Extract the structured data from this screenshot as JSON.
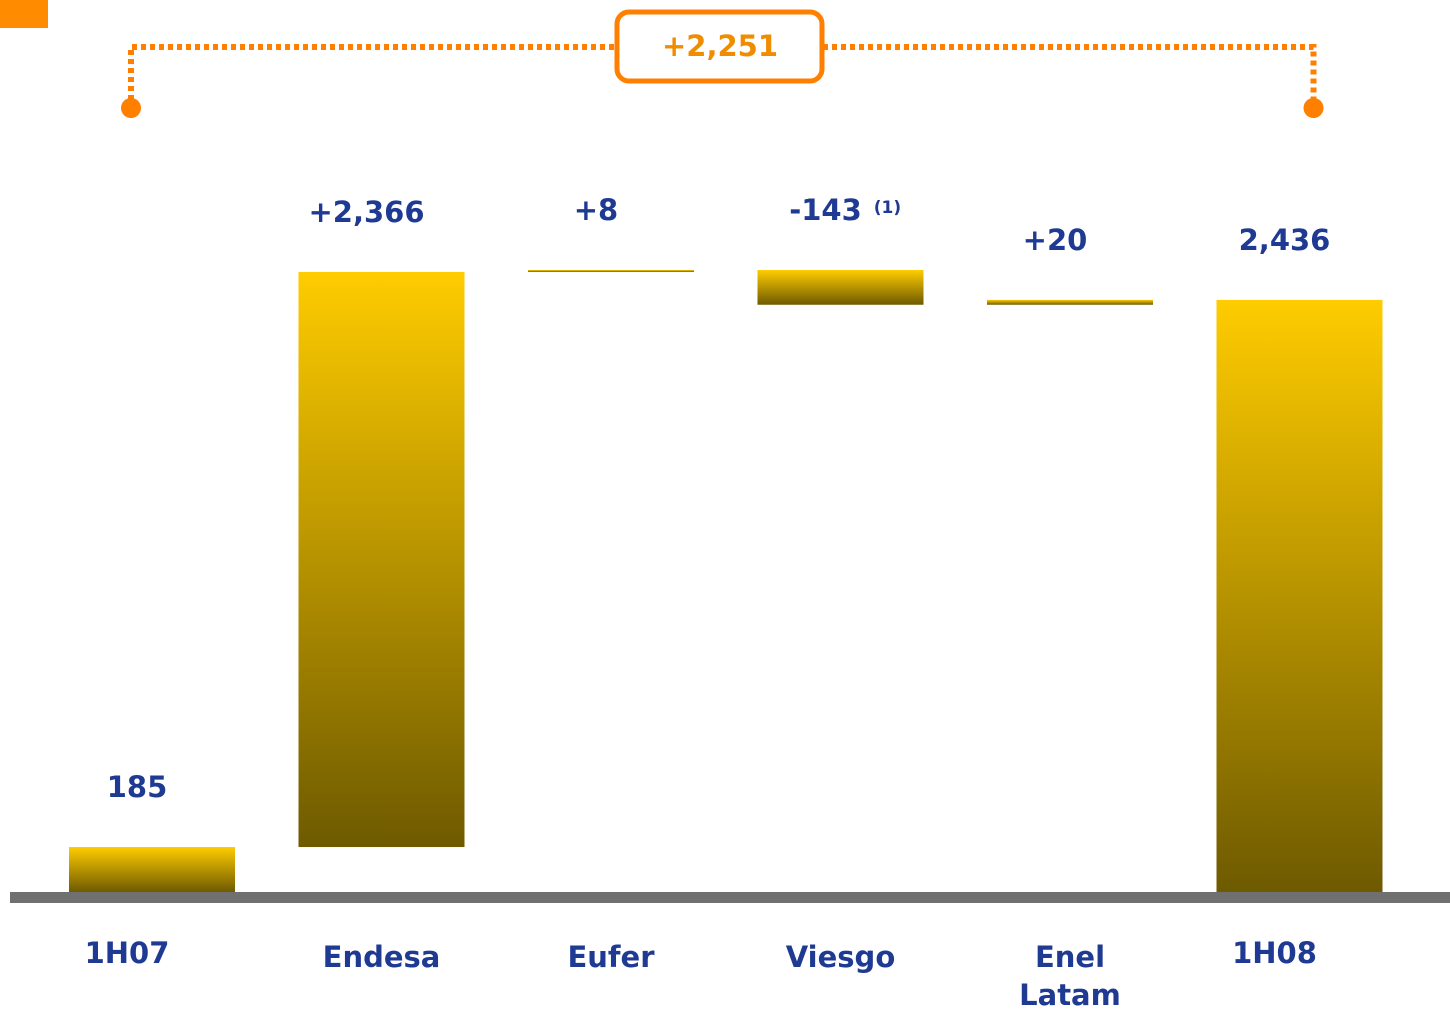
{
  "chart_data": {
    "type": "waterfall",
    "categories": [
      "1H07",
      "Endesa",
      "Eufer",
      "Viesgo",
      "Enel Latam",
      "1H08"
    ],
    "values": [
      185,
      2366,
      8,
      -143,
      20,
      2436
    ],
    "value_labels": [
      "185",
      "+2,366",
      "+8",
      "-143",
      "+20",
      "2,436"
    ],
    "footnote": {
      "text": "(1)",
      "index": 3
    },
    "bracket": {
      "label": "+2,251",
      "from": 0,
      "to": 5,
      "color": "#ff7f00"
    },
    "gradient": [
      "#ffcc00",
      "#6e5a00"
    ],
    "label_color": "#1f3a93",
    "baseline_color": "#707070"
  }
}
